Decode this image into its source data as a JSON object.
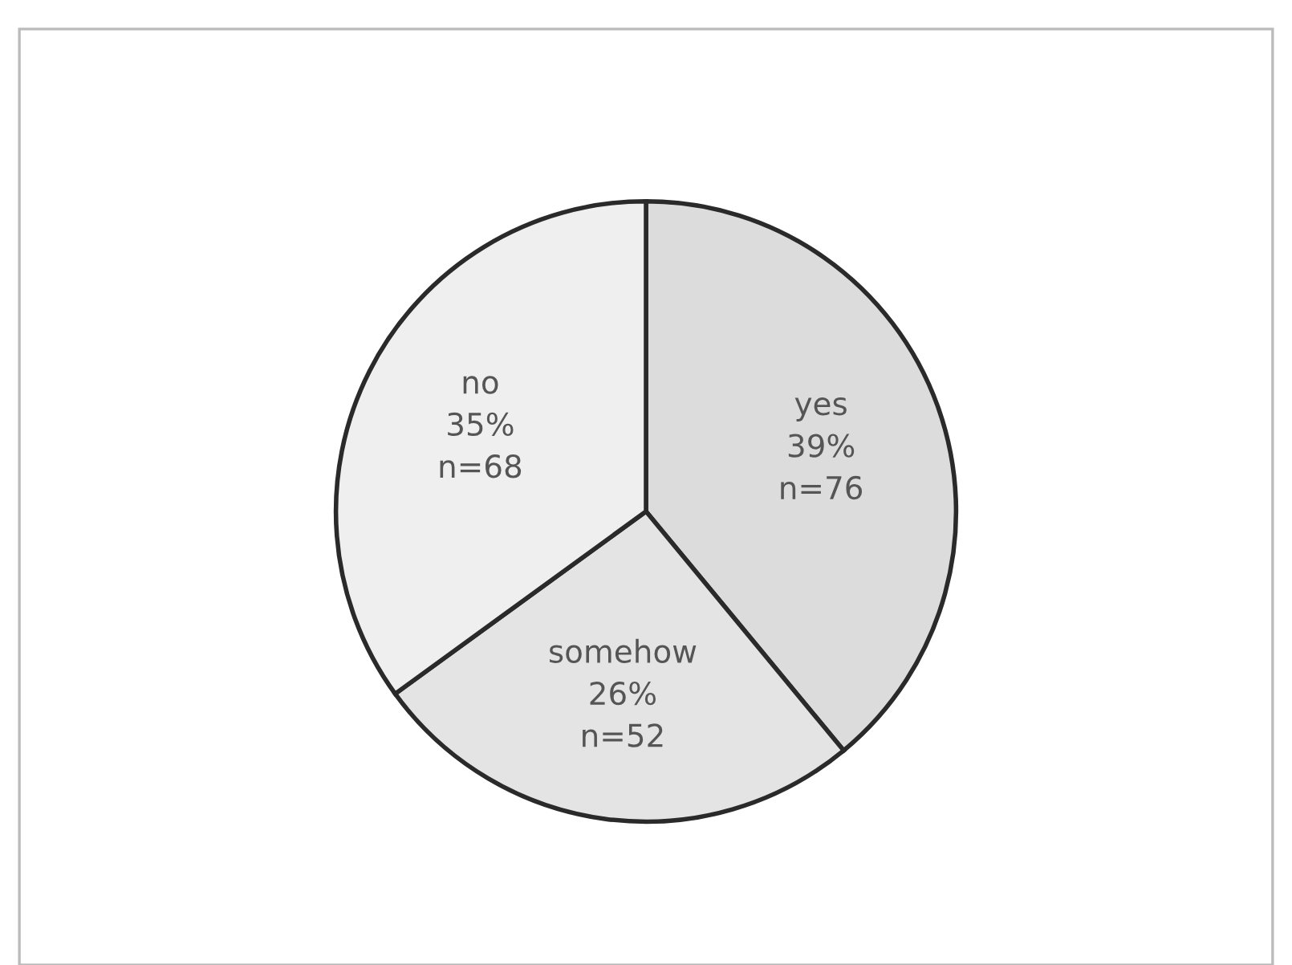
{
  "chart_data": {
    "type": "pie",
    "categories": [
      "yes",
      "somehow",
      "no"
    ],
    "values": [
      39,
      26,
      35
    ],
    "value_labels": [
      "39%\nn=76",
      "26%\nn=52",
      "35%\nn=68"
    ],
    "colors": [
      "#dcdcdc",
      "#e4e4e4",
      "#efefef"
    ],
    "legend": false
  }
}
